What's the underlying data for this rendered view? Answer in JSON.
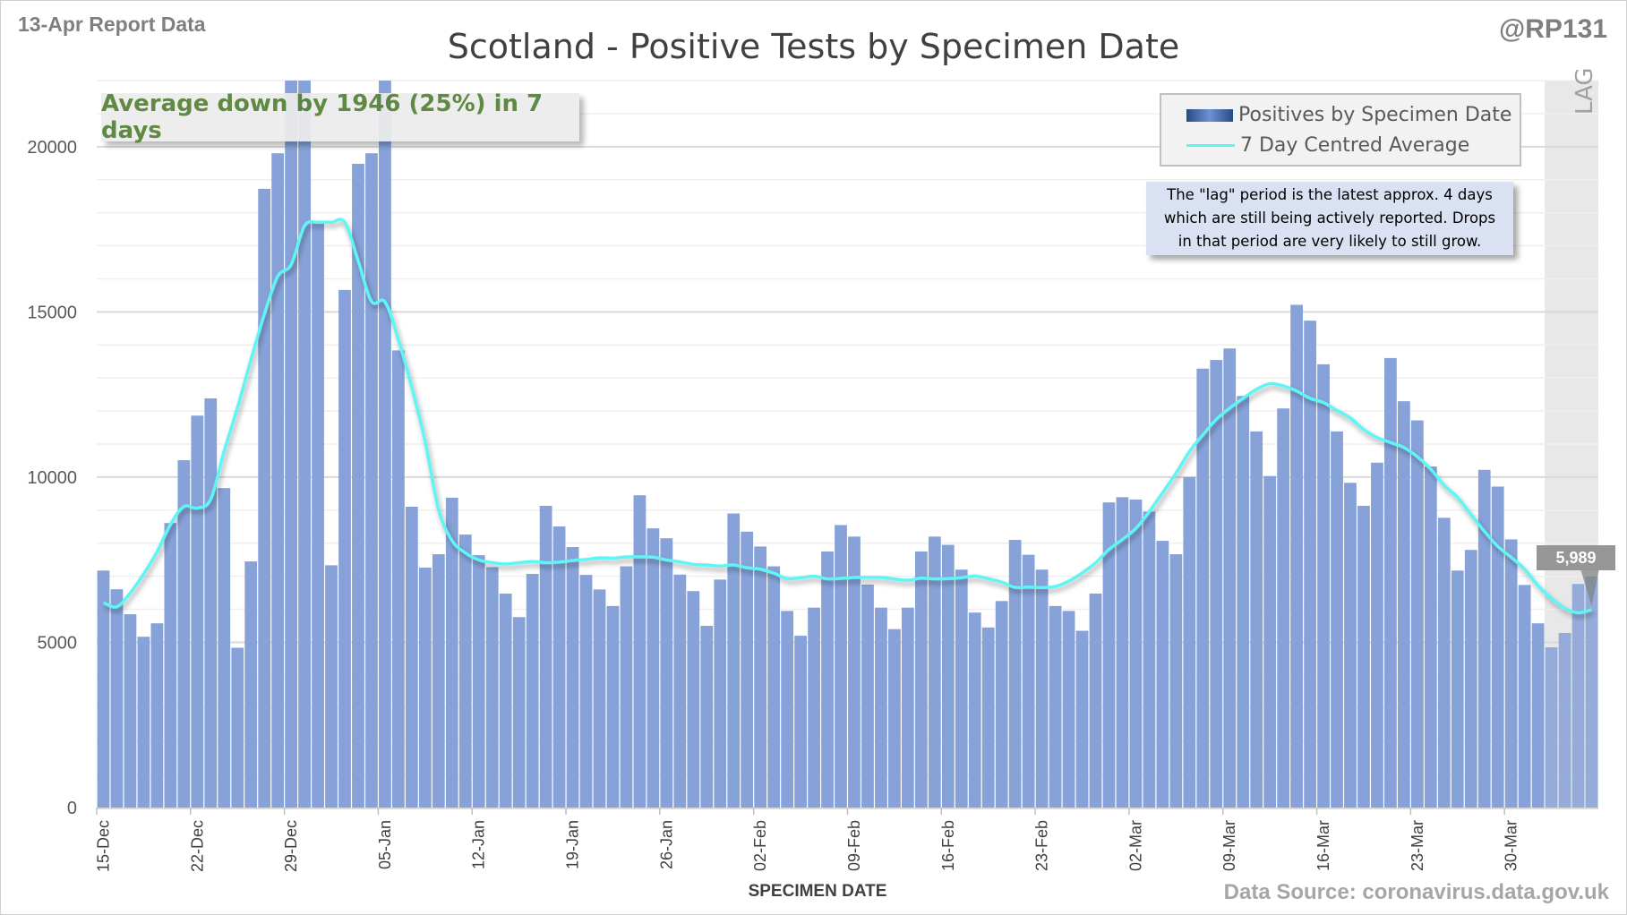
{
  "header": {
    "report_date": "13-Apr Report Data",
    "handle": "@RP131",
    "title": "Scotland - Positive Tests by Specimen Date"
  },
  "annotation": "Average down by 1946 (25%) in 7 days",
  "legend": {
    "bars": "Positives by Specimen Date",
    "line": "7 Day Centred Average"
  },
  "note": [
    "The \"lag\" period is the latest approx. 4 days",
    "which are still being actively reported.  Drops",
    "in that period are very likely to still grow."
  ],
  "lag_label": "LAG",
  "last_average_label": "5,989",
  "footer": {
    "xlabel": "SPECIMEN DATE",
    "source": "Data Source: coronavirus.data.gov.uk"
  },
  "colors": {
    "bar_top": "#27467e",
    "bar_mid": "#4a76c4",
    "bar_bottom": "#86a2d9",
    "line": "#5ef5f5",
    "lag_shade": "#e8e8e8",
    "annotation_text": "#548235"
  },
  "chart_data": {
    "type": "bar",
    "title": "Scotland - Positive Tests by Specimen Date",
    "xlabel": "SPECIMEN DATE",
    "ylabel": "",
    "ylim": [
      0,
      22000
    ],
    "y_ticks": [
      0,
      5000,
      10000,
      15000,
      20000
    ],
    "grid": true,
    "legend_position": "top-right",
    "start_date": "15-Dec",
    "x_tick_labels": [
      "15-Dec",
      "22-Dec",
      "29-Dec",
      "05-Jan",
      "12-Jan",
      "19-Jan",
      "26-Jan",
      "02-Feb",
      "09-Feb",
      "16-Feb",
      "23-Feb",
      "02-Mar",
      "09-Mar",
      "16-Mar",
      "23-Mar",
      "30-Mar"
    ],
    "lag_days": 4,
    "series": [
      {
        "name": "Positives by Specimen Date",
        "type": "bar",
        "values": [
          7172,
          6606,
          5851,
          5169,
          5576,
          8610,
          10511,
          11861,
          12383,
          9669,
          4836,
          7448,
          18726,
          19800,
          22000,
          22000,
          17710,
          7332,
          15664,
          19481,
          19800,
          22000,
          13835,
          9103,
          7260,
          7666,
          9378,
          8261,
          7637,
          7274,
          6476,
          5764,
          7071,
          9132,
          8508,
          7884,
          7042,
          6600,
          6100,
          7300,
          9450,
          8450,
          8150,
          7050,
          6550,
          5500,
          6900,
          8900,
          8350,
          7900,
          7300,
          5950,
          5200,
          6050,
          7750,
          8550,
          8200,
          6750,
          6050,
          5400,
          6050,
          7750,
          8200,
          7950,
          7200,
          5900,
          5450,
          6250,
          8100,
          7650,
          7200,
          6100,
          5950,
          5350,
          6476,
          9234,
          9393,
          9321,
          8958,
          8072,
          7666,
          10003,
          13283,
          13545,
          13893,
          12456,
          11382,
          10032,
          12078,
          15214,
          14735,
          13414,
          11382,
          9828,
          9132,
          10438,
          13603,
          12296,
          11716,
          10322,
          8769,
          7172,
          7797,
          10220,
          9713,
          8117,
          6737,
          5575,
          4850,
          5285,
          6767,
          6997
        ]
      },
      {
        "name": "7 Day Centred Average",
        "type": "line",
        "window": 7,
        "last_value": 5989
      }
    ]
  }
}
